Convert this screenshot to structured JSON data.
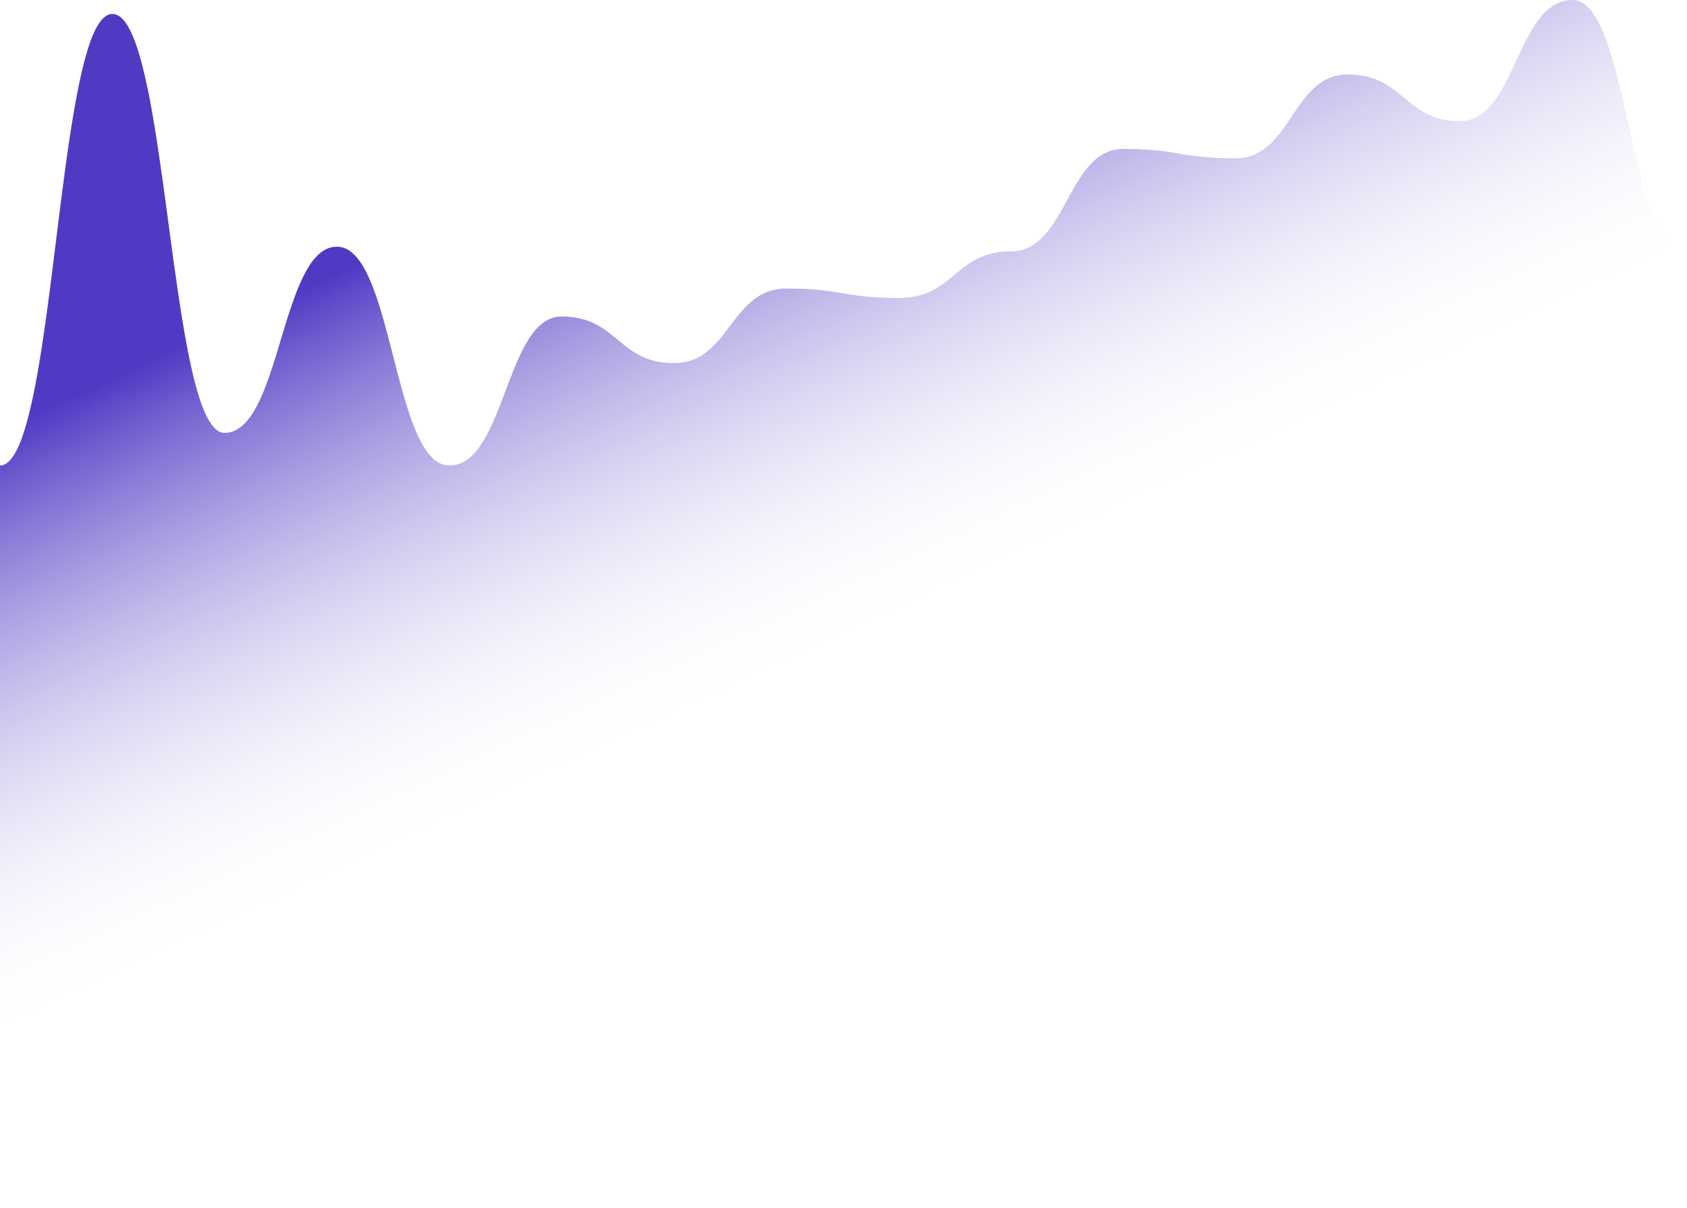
{
  "chart_data": {
    "type": "area",
    "title": "",
    "xlabel": "",
    "ylabel": "",
    "grid": false,
    "legend": "none",
    "series": [
      {
        "values": [
          {
            "x": 0,
            "y": 0.0
          },
          {
            "x": 1,
            "y": 9.7
          },
          {
            "x": 2,
            "y": 0.7
          },
          {
            "x": 3,
            "y": 4.7
          },
          {
            "x": 4,
            "y": 0.0
          },
          {
            "x": 5,
            "y": 3.2
          },
          {
            "x": 6,
            "y": 2.2
          },
          {
            "x": 7,
            "y": 3.8
          },
          {
            "x": 8,
            "y": 3.6
          },
          {
            "x": 9,
            "y": 4.6
          },
          {
            "x": 10,
            "y": 6.8
          },
          {
            "x": 11,
            "y": 6.6
          },
          {
            "x": 12,
            "y": 8.4
          },
          {
            "x": 13,
            "y": 7.4
          },
          {
            "x": 14,
            "y": 10.0
          },
          {
            "x": 15,
            "y": 4.6
          }
        ]
      }
    ],
    "ylim": [
      0,
      10
    ],
    "xlim": [
      0,
      15
    ],
    "colors": {
      "fill_start": "#5239c4",
      "fill_end": "#ffffff"
    }
  }
}
